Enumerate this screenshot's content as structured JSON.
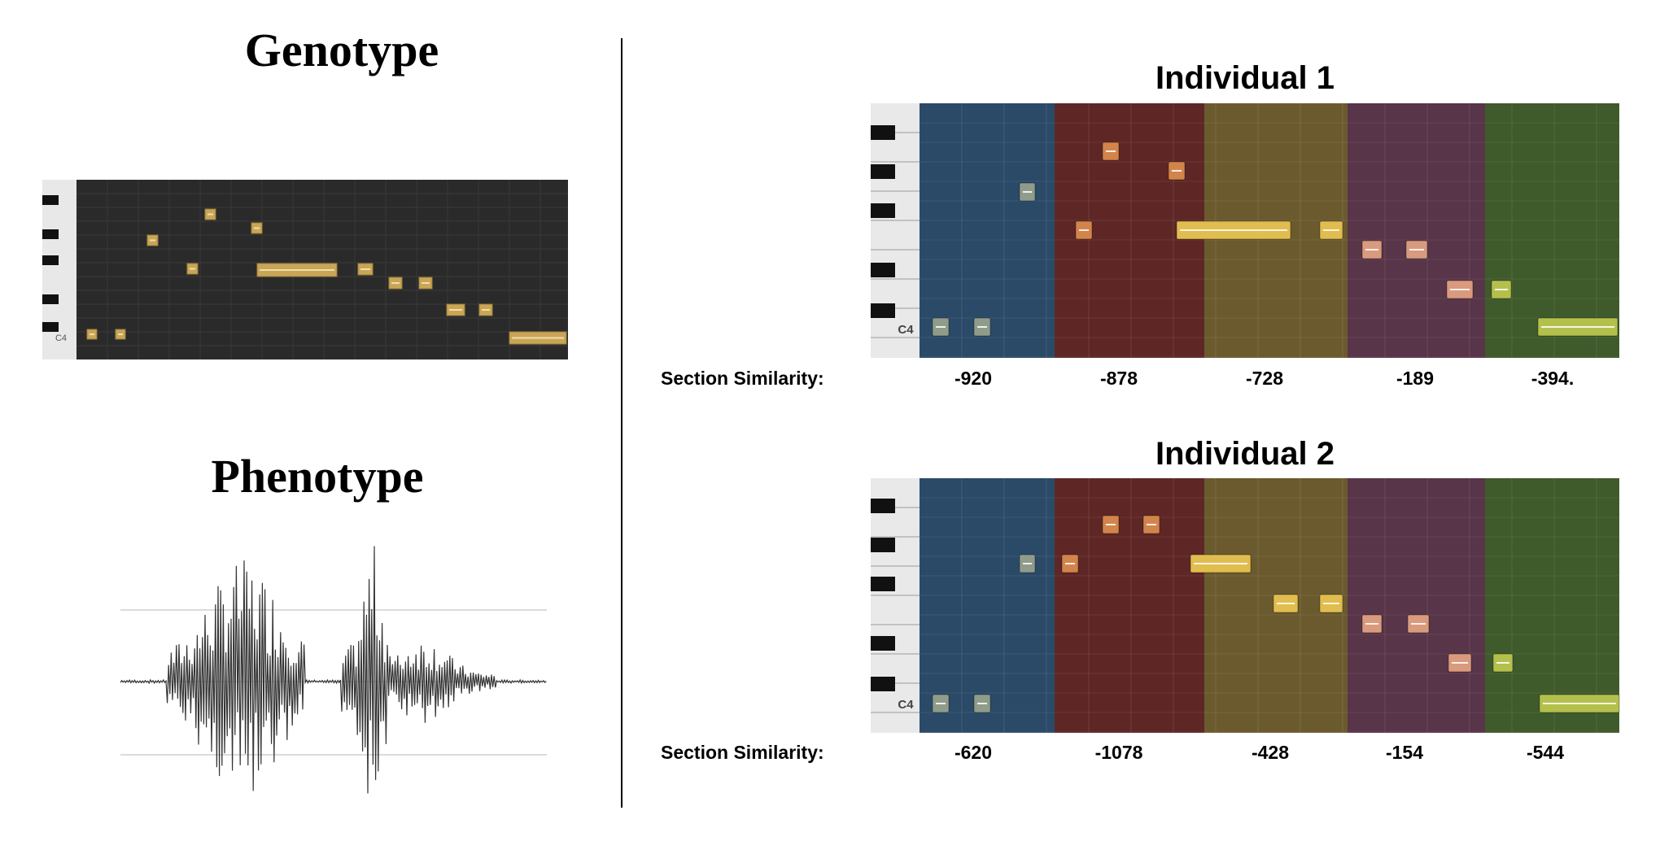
{
  "genotype": {
    "title": "Genotype",
    "c4_label": "C4"
  },
  "phenotype": {
    "title": "Phenotype"
  },
  "individuals": [
    {
      "title": "Individual 1",
      "c4_label": "C4",
      "similarity_label": "Section Similarity:",
      "similarities": [
        "-920",
        "-878",
        "-728",
        "-189",
        "-394."
      ]
    },
    {
      "title": "Individual 2",
      "c4_label": "C4",
      "similarity_label": "Section Similarity:",
      "similarities": [
        "-620",
        "-1078",
        "-428",
        "-154",
        "-544"
      ]
    }
  ],
  "section_colors": [
    "#2b4a68",
    "#5e2726",
    "#6b5a2e",
    "#583548",
    "#3f5a2b"
  ],
  "note_colors": [
    "#8f9c8a",
    "#d2844b",
    "#e0bd4e",
    "#d99a7e",
    "#b4c04c"
  ]
}
